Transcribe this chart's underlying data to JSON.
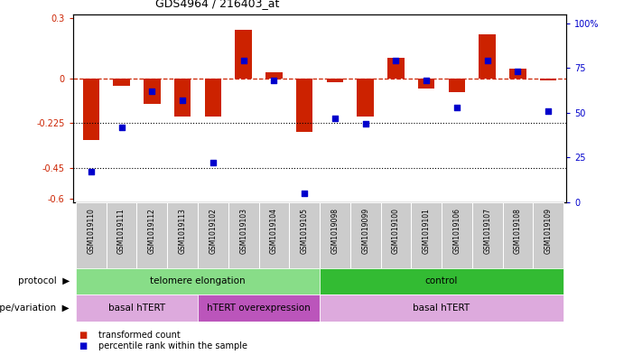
{
  "title": "GDS4964 / 216403_at",
  "samples": [
    "GSM1019110",
    "GSM1019111",
    "GSM1019112",
    "GSM1019113",
    "GSM1019102",
    "GSM1019103",
    "GSM1019104",
    "GSM1019105",
    "GSM1019098",
    "GSM1019099",
    "GSM1019100",
    "GSM1019101",
    "GSM1019106",
    "GSM1019107",
    "GSM1019108",
    "GSM1019109"
  ],
  "bar_values": [
    -0.31,
    -0.04,
    -0.13,
    -0.19,
    -0.19,
    0.24,
    0.03,
    -0.27,
    -0.02,
    -0.19,
    0.1,
    -0.05,
    -0.07,
    0.22,
    0.05,
    -0.01
  ],
  "dot_values": [
    17,
    42,
    62,
    57,
    22,
    79,
    68,
    5,
    47,
    44,
    79,
    68,
    53,
    79,
    73,
    51
  ],
  "ylim_left": [
    -0.62,
    0.32
  ],
  "ylim_right": [
    0,
    105
  ],
  "yticks_left": [
    -0.6,
    -0.45,
    -0.225,
    0,
    0.3
  ],
  "yticks_right": [
    0,
    25,
    50,
    75,
    100
  ],
  "ytick_labels_left": [
    "-0.6",
    "-0.45",
    "-0.225",
    "0",
    "0.3"
  ],
  "ytick_labels_right": [
    "0",
    "25",
    "50",
    "75",
    "100%"
  ],
  "hline_y": 0,
  "dotted_lines": [
    -0.225,
    -0.45
  ],
  "bar_color": "#CC2200",
  "dot_color": "#0000CC",
  "hline_color": "#CC2200",
  "protocol_groups": [
    {
      "label": "telomere elongation",
      "start": 0,
      "end": 7,
      "color": "#88DD88"
    },
    {
      "label": "control",
      "start": 8,
      "end": 15,
      "color": "#33BB33"
    }
  ],
  "genotype_groups": [
    {
      "label": "basal hTERT",
      "start": 0,
      "end": 3,
      "color": "#DDAADD"
    },
    {
      "label": "hTERT overexpression",
      "start": 4,
      "end": 7,
      "color": "#BB55BB"
    },
    {
      "label": "basal hTERT",
      "start": 8,
      "end": 15,
      "color": "#DDAADD"
    }
  ],
  "legend_items": [
    {
      "label": "transformed count",
      "color": "#CC2200"
    },
    {
      "label": "percentile rank within the sample",
      "color": "#0000CC"
    }
  ],
  "protocol_label": "protocol",
  "genotype_label": "genotype/variation",
  "background_color": "#FFFFFF"
}
